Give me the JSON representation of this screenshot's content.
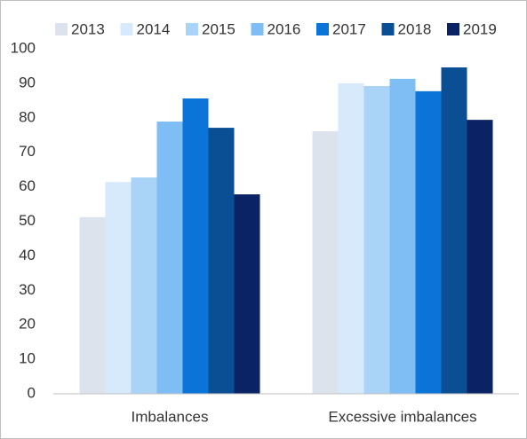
{
  "chart_data": {
    "type": "bar",
    "categories": [
      "Imbalances",
      "Excessive imbalances"
    ],
    "series": [
      {
        "name": "2013",
        "color": "#dce3ed",
        "values": [
          51.2,
          76.1
        ]
      },
      {
        "name": "2014",
        "color": "#d6eafc",
        "values": [
          61.4,
          90.0
        ]
      },
      {
        "name": "2015",
        "color": "#a9d3f7",
        "values": [
          62.7,
          89.2
        ]
      },
      {
        "name": "2016",
        "color": "#7fbef5",
        "values": [
          78.9,
          91.3
        ]
      },
      {
        "name": "2017",
        "color": "#0a74d8",
        "values": [
          85.6,
          87.7
        ]
      },
      {
        "name": "2018",
        "color": "#0a4f94",
        "values": [
          77.1,
          94.6
        ]
      },
      {
        "name": "2019",
        "color": "#0a2364",
        "values": [
          57.8,
          79.4
        ]
      }
    ],
    "ylim": [
      0,
      100
    ],
    "yticks": [
      0,
      10,
      20,
      30,
      40,
      50,
      60,
      70,
      80,
      90,
      100
    ],
    "grid": false,
    "legend": "top"
  }
}
